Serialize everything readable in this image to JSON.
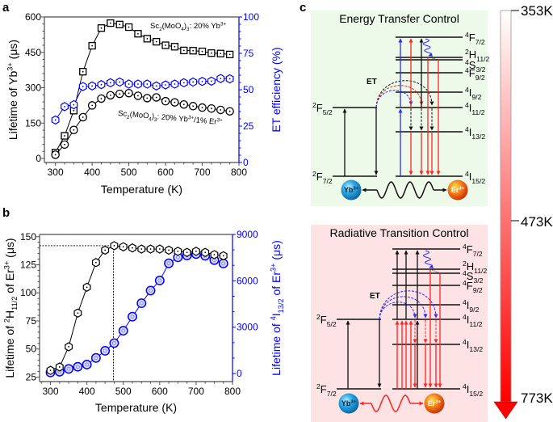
{
  "panel_labels": {
    "a": "a",
    "b": "b",
    "c": "c"
  },
  "chart_data": [
    {
      "id": "a",
      "type": "line",
      "title": "",
      "xlabel": "Temperature (K)",
      "xlim": [
        270,
        800
      ],
      "xticks": [
        300,
        400,
        500,
        600,
        700,
        800
      ],
      "x_minor_step": 25,
      "grid": false,
      "legend": "none (inline annotations)",
      "y_left": {
        "label": [
          {
            "t": "Lifetime of Yb"
          },
          {
            "t": "3+",
            "s": "sup"
          },
          {
            "t": " (μs)"
          }
        ],
        "lim": [
          -17,
          600
        ],
        "ticks": [
          0,
          150,
          300,
          450,
          600
        ],
        "minor_step": 30,
        "color": "#000000"
      },
      "y_right": {
        "label": [
          {
            "t": "ET efficiency (%)"
          }
        ],
        "lim": [
          0,
          100
        ],
        "ticks": [
          0,
          25,
          50,
          75,
          100
        ],
        "minor_step": 5,
        "color": "#0000ff"
      },
      "x": [
        300,
        325,
        350,
        375,
        400,
        425,
        450,
        475,
        500,
        525,
        550,
        575,
        600,
        625,
        650,
        675,
        700,
        725,
        750,
        775
      ],
      "series": [
        {
          "name": "Sc2(MoO4)3: 20% Yb3+",
          "axis": "left",
          "marker": "square",
          "color": "#000000",
          "values": [
            25,
            96,
            203,
            368,
            478,
            553,
            574,
            568,
            557,
            529,
            508,
            495,
            480,
            474,
            458,
            457,
            454,
            447,
            445,
            441
          ]
        },
        {
          "name": "Sc2(MoO4)3: 20% Yb3+/1% Er3+",
          "axis": "left",
          "marker": "circle",
          "color": "#000000",
          "values": [
            16,
            59,
            121,
            175,
            225,
            254,
            268,
            274,
            277,
            266,
            256,
            259,
            243,
            238,
            229,
            222,
            216,
            212,
            206,
            200
          ]
        },
        {
          "name": "ET efficiency",
          "axis": "right",
          "marker": "hexagon",
          "color": "#0000ff",
          "values": [
            29.2,
            38.4,
            39.7,
            52.2,
            52.6,
            53.5,
            54.8,
            55.3,
            53.9,
            53.9,
            53.9,
            52.6,
            53.3,
            53.9,
            54.8,
            55.3,
            55.7,
            55.9,
            57.7,
            57.5
          ]
        }
      ],
      "annotations": [
        {
          "segments": [
            {
              "t": "Sc"
            },
            {
              "t": "2",
              "s": "sub"
            },
            {
              "t": "(MoO"
            },
            {
              "t": "4",
              "s": "sub"
            },
            {
              "t": ")"
            },
            {
              "t": "3",
              "s": "sub"
            },
            {
              "t": ": 20% Yb"
            },
            {
              "t": "3+",
              "s": "sup"
            }
          ]
        },
        {
          "segments": [
            {
              "t": "Sc"
            },
            {
              "t": "2",
              "s": "sub"
            },
            {
              "t": "(MoO"
            },
            {
              "t": "4",
              "s": "sub"
            },
            {
              "t": ")"
            },
            {
              "t": "3",
              "s": "sub"
            },
            {
              "t": ": 20% Yb"
            },
            {
              "t": "3+",
              "s": "sup"
            },
            {
              "t": "/1% Er"
            },
            {
              "t": "3+",
              "s": "sup"
            }
          ]
        }
      ]
    },
    {
      "id": "b",
      "type": "line",
      "title": "",
      "xlabel": "Temperature (K)",
      "xlim": [
        270,
        800
      ],
      "xticks": [
        300,
        400,
        500,
        600,
        700,
        800
      ],
      "x_minor_step": 25,
      "grid": false,
      "legend": "none",
      "y_left": {
        "label": [
          {
            "t": "Lifetime of "
          },
          {
            "t": "2",
            "s": "sup"
          },
          {
            "t": "H"
          },
          {
            "t": "11/2",
            "s": "sub"
          },
          {
            "t": " of Er"
          },
          {
            "t": "3+",
            "s": "sup"
          },
          {
            "t": " (μs)"
          }
        ],
        "lim": [
          21,
          152
        ],
        "ticks": [
          25,
          50,
          75,
          100,
          125,
          150
        ],
        "minor_step": 5,
        "color": "#000000"
      },
      "y_right": {
        "label": [
          {
            "t": "Lifetime of "
          },
          {
            "t": "4",
            "s": "sup"
          },
          {
            "t": "I"
          },
          {
            "t": "13/2",
            "s": "sub"
          },
          {
            "t": " of Er"
          },
          {
            "t": "3+",
            "s": "sup"
          },
          {
            "t": " (μs)"
          }
        ],
        "lim": [
          -520,
          9000
        ],
        "ticks": [
          0,
          3000,
          6000,
          9000
        ],
        "minor_step": 1000,
        "color": "#0000ff"
      },
      "x": [
        300,
        325,
        350,
        375,
        400,
        425,
        450,
        475,
        500,
        525,
        550,
        575,
        600,
        625,
        650,
        675,
        700,
        725,
        750,
        775
      ],
      "series": [
        {
          "name": "4I13/2 lifetime of Er3+",
          "axis": "right",
          "marker": "double-circle",
          "color": "#0000ff",
          "values": [
            70,
            120,
            300,
            440,
            580,
            1010,
            1470,
            1970,
            2770,
            3680,
            4550,
            5370,
            6020,
            7130,
            7520,
            7640,
            7730,
            7620,
            7340,
            7120
          ]
        },
        {
          "name": "2H11/2 lifetime of Er3+",
          "axis": "left",
          "marker": "hexagon",
          "color": "#000000",
          "values": [
            31,
            34,
            52,
            82,
            105,
            127,
            138,
            142,
            141,
            140,
            139,
            139,
            139,
            138,
            137,
            136,
            137,
            136,
            134,
            133
          ]
        }
      ],
      "reference_lines": {
        "x": 473,
        "y": 142,
        "style": "dotted"
      }
    }
  ],
  "diagram": {
    "panels": [
      {
        "title": "Energy Transfer Control",
        "background": "#edf9e9"
      },
      {
        "title": "Radiative Transition Control",
        "background": "#fde3e3"
      }
    ],
    "yb_levels": [
      [
        {
          "t": "2",
          "s": "sup"
        },
        {
          "t": "F"
        },
        {
          "t": "5/2",
          "s": "sub"
        }
      ],
      [
        {
          "t": "2",
          "s": "sup"
        },
        {
          "t": "F"
        },
        {
          "t": "7/2",
          "s": "sub"
        }
      ]
    ],
    "er_levels": [
      [
        {
          "t": "4",
          "s": "sup"
        },
        {
          "t": "F"
        },
        {
          "t": "7/2",
          "s": "sub"
        }
      ],
      [
        {
          "t": "2",
          "s": "sup"
        },
        {
          "t": "H"
        },
        {
          "t": "11/2",
          "s": "sub"
        }
      ],
      [
        {
          "t": "4",
          "s": "sup"
        },
        {
          "t": "S"
        },
        {
          "t": "3/2",
          "s": "sub"
        }
      ],
      [
        {
          "t": "4",
          "s": "sup"
        },
        {
          "t": "F"
        },
        {
          "t": "9/2",
          "s": "sub"
        }
      ],
      [
        {
          "t": "4",
          "s": "sup"
        },
        {
          "t": "I"
        },
        {
          "t": "9/2",
          "s": "sub"
        }
      ],
      [
        {
          "t": "4",
          "s": "sup"
        },
        {
          "t": "I"
        },
        {
          "t": "11/2",
          "s": "sub"
        }
      ],
      [
        {
          "t": "4",
          "s": "sup"
        },
        {
          "t": "I"
        },
        {
          "t": "13/2",
          "s": "sub"
        }
      ],
      [
        {
          "t": "4",
          "s": "sup"
        },
        {
          "t": "I"
        },
        {
          "t": "15/2",
          "s": "sub"
        }
      ]
    ],
    "et_label": "ET",
    "ions": {
      "yb": [
        {
          "t": "Yb"
        },
        {
          "t": "3+",
          "s": "sup"
        }
      ],
      "er": [
        {
          "t": "Er"
        },
        {
          "t": "3+",
          "s": "sup"
        }
      ]
    },
    "colors": {
      "red": "#ff2424",
      "blue": "#2b2bff",
      "black": "#111111"
    }
  },
  "temperature_scale": {
    "labels": [
      {
        "label": "353K"
      },
      {
        "label": "473K"
      },
      {
        "label": "773K"
      }
    ],
    "top_color": "#ffffff",
    "bottom_color": "#ff0000"
  }
}
